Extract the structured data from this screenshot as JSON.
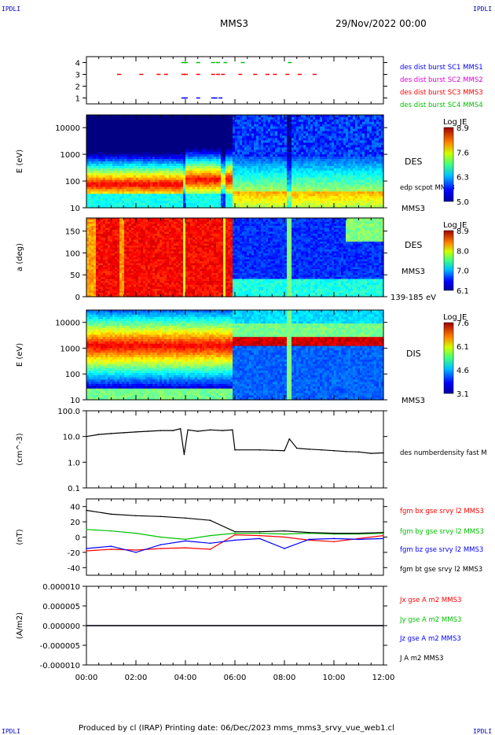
{
  "corner": {
    "tl": "IPDLI",
    "tr": "IPDLI",
    "bl": "IPDLI",
    "br": "IPDLI"
  },
  "header": {
    "spacecraft": "MMS3",
    "date": "29/Nov/2022 00:00"
  },
  "footer": "Produced by cl (IRAP)   Printing date: 06/Dec/2023   mms_mms3_srvy_vue_web1.cl",
  "colors": {
    "red": "#ff0000",
    "green": "#00c000",
    "blue": "#0000ff",
    "magenta": "#e000e0",
    "black": "#000000"
  },
  "chart_data": [
    {
      "type": "scatter",
      "title": "",
      "ylim": [
        0.5,
        4.5
      ],
      "yticks": [
        "1",
        "2",
        "3",
        "4"
      ],
      "legend": [
        {
          "label": "des dist burst SC1 MMS1",
          "color": "#0000ff"
        },
        {
          "label": "des dist burst SC2 MMS2",
          "color": "#e000e0"
        },
        {
          "label": "des dist burst SC3 MMS3",
          "color": "#ff0000"
        },
        {
          "label": "des dist burst SC4 MMS4",
          "color": "#00c000"
        }
      ],
      "series": [
        {
          "name": "des dist burst SC1 MMS1",
          "y": 1,
          "t": [
            3.9,
            4.0,
            4.5,
            5.1,
            5.2,
            5.4
          ]
        },
        {
          "name": "des dist burst SC3 MMS3",
          "y": 3,
          "t": [
            1.3,
            2.2,
            2.9,
            3.2,
            3.9,
            4.0,
            4.5,
            5.1,
            5.3,
            5.5,
            6.2,
            6.8,
            7.3,
            7.6,
            8.1,
            8.6,
            9.2
          ]
        },
        {
          "name": "des dist burst SC4 MMS4",
          "y": 4,
          "t": [
            3.9,
            4.0,
            4.5,
            5.1,
            5.3,
            5.6,
            6.3,
            8.2
          ]
        }
      ]
    },
    {
      "type": "heatmap",
      "ylabel": "E (eV)",
      "yscale": "log",
      "ylim": [
        10,
        30000
      ],
      "yticks": [
        "10",
        "100",
        "1000",
        "10000"
      ],
      "label": "DES",
      "sublabel": "edp scpot MMS3",
      "bottom_label": "MMS3",
      "colorbar": {
        "title": "Log JE",
        "ticks": [
          "8.9",
          "7.6",
          "6.3",
          "5.0"
        ],
        "range": [
          5.0,
          8.9
        ]
      }
    },
    {
      "type": "heatmap",
      "ylabel": "a (deg)",
      "ylim": [
        0,
        180
      ],
      "yticks": [
        "0",
        "50",
        "100",
        "150"
      ],
      "label": "DES",
      "sublabel": "MMS3",
      "bottom_label": "139-185 eV",
      "colorbar": {
        "title": "Log JE",
        "ticks": [
          "8.9",
          "8.0",
          "7.0",
          "6.1"
        ],
        "range": [
          6.1,
          8.9
        ]
      }
    },
    {
      "type": "heatmap",
      "ylabel": "E (eV)",
      "yscale": "log",
      "ylim": [
        10,
        30000
      ],
      "yticks": [
        "10",
        "100",
        "1000",
        "10000"
      ],
      "label": "DIS",
      "bottom_label": "MMS3",
      "colorbar": {
        "title": "Log JE",
        "ticks": [
          "7.6",
          "6.1",
          "4.6",
          "3.1"
        ],
        "range": [
          3.1,
          7.6
        ]
      }
    },
    {
      "type": "line",
      "ylabel": "(cm^-3)",
      "yscale": "log",
      "ylim": [
        0.1,
        100
      ],
      "yticks": [
        "0.1",
        "1.0",
        "10.0",
        "100.0"
      ],
      "series": [
        {
          "name": "des numberdensity fast M",
          "color": "#000000",
          "x": [
            0,
            0.5,
            1.0,
            1.5,
            2.0,
            2.5,
            3.0,
            3.5,
            3.8,
            3.95,
            4.1,
            4.5,
            5.0,
            5.5,
            5.9,
            6.0,
            7.0,
            7.5,
            8.0,
            8.2,
            8.5,
            9.0,
            9.5,
            10.0,
            10.5,
            11.0,
            11.5,
            12.0
          ],
          "y": [
            10,
            12,
            13,
            14,
            15,
            16,
            17,
            17,
            20,
            2,
            18,
            16,
            18,
            17,
            18,
            3.0,
            3.0,
            2.9,
            2.8,
            8,
            3.5,
            3.2,
            3.0,
            2.8,
            2.6,
            2.5,
            2.2,
            2.3
          ]
        }
      ]
    },
    {
      "type": "line",
      "ylabel": "(nT)",
      "ylim": [
        -50,
        50
      ],
      "yticks": [
        "-40",
        "-20",
        "0",
        "20",
        "40"
      ],
      "series": [
        {
          "name": "fgm bx gse srvy l2 MMS3",
          "color": "#ff0000",
          "x": [
            0,
            1,
            2,
            3,
            4,
            5,
            6,
            7,
            8,
            9,
            10,
            11,
            12
          ],
          "y": [
            -18,
            -16,
            -17,
            -15,
            -14,
            -16,
            3,
            2,
            0,
            -4,
            -6,
            -2,
            2
          ]
        },
        {
          "name": "fgm by gse srvy l2 MMS3",
          "color": "#00c000",
          "x": [
            0,
            1,
            2,
            3,
            4,
            5,
            6,
            7,
            8,
            9,
            10,
            11,
            12
          ],
          "y": [
            10,
            8,
            5,
            0,
            -3,
            2,
            5,
            5,
            4,
            5,
            4,
            4,
            5
          ]
        },
        {
          "name": "fgm bz gse srvy l2 MMS3",
          "color": "#0000ff",
          "x": [
            0,
            1,
            2,
            3,
            4,
            5,
            6,
            7,
            8,
            9,
            10,
            11,
            12
          ],
          "y": [
            -15,
            -12,
            -20,
            -10,
            -5,
            -8,
            -4,
            -2,
            -15,
            -3,
            -2,
            -3,
            -2
          ]
        },
        {
          "name": "fgm bt gse srvy l2 MMS3",
          "color": "#000000",
          "x": [
            0,
            1,
            2,
            3,
            4,
            5,
            6,
            7,
            8,
            9,
            10,
            11,
            12
          ],
          "y": [
            35,
            30,
            28,
            27,
            25,
            22,
            7,
            7,
            8,
            6,
            5,
            5,
            6
          ]
        }
      ]
    },
    {
      "type": "line",
      "ylabel": "(A/m2)",
      "ylim": [
        -1e-05,
        1e-05
      ],
      "yticks": [
        "-0.000010",
        "-0.000005",
        "0.000000",
        "0.000005",
        "0.000010"
      ],
      "series": [
        {
          "name": "Jx gse A m2 MMS3",
          "color": "#ff0000",
          "x": [
            0,
            12
          ],
          "y": [
            0,
            0
          ]
        },
        {
          "name": "Jy gse A m2 MMS3",
          "color": "#00c000",
          "x": [
            0,
            12
          ],
          "y": [
            0,
            0
          ]
        },
        {
          "name": "Jz gse A m2 MMS3",
          "color": "#0000ff",
          "x": [
            0,
            12
          ],
          "y": [
            0,
            0
          ]
        },
        {
          "name": "J A m2 MMS3",
          "color": "#000000",
          "x": [
            0,
            12
          ],
          "y": [
            0,
            0
          ]
        }
      ]
    }
  ],
  "xaxis": {
    "ticks": [
      "00:00",
      "02:00",
      "04:00",
      "06:00",
      "08:00",
      "10:00",
      "12:00"
    ],
    "xlim": [
      0,
      12
    ]
  }
}
